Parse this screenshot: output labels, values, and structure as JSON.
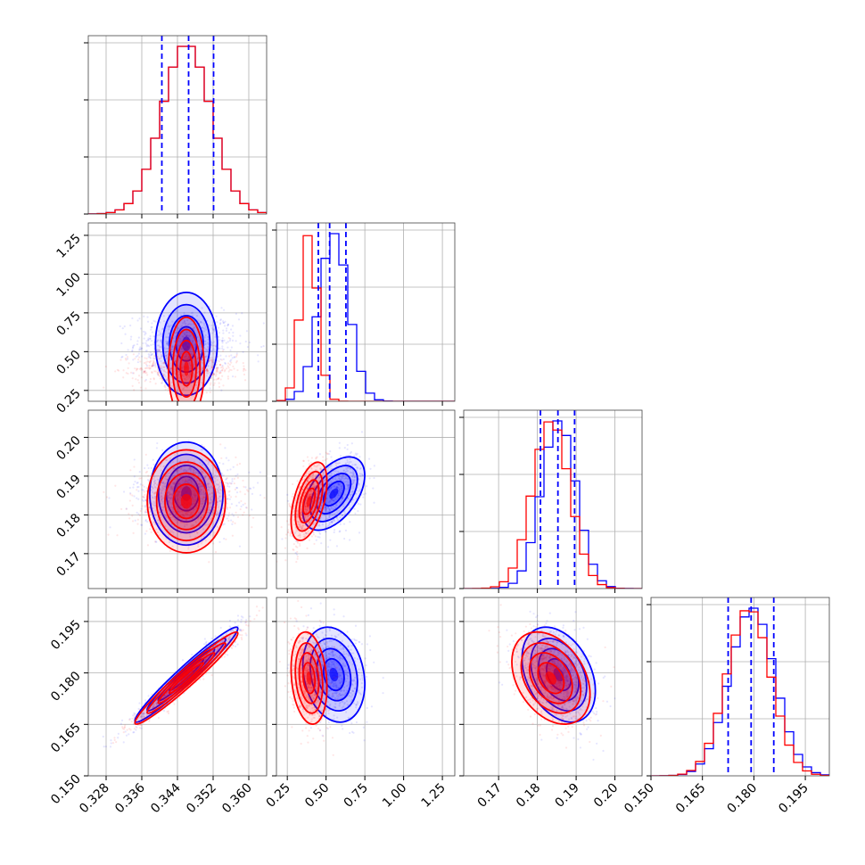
{
  "chart_data": {
    "type": "corner",
    "series": [
      {
        "name": "",
        "color": "#0000ff",
        "means": [
          0.346,
          0.55,
          0.1855,
          0.1795
        ],
        "sds": [
          0.0055,
          0.095,
          0.0045,
          0.0066
        ],
        "quantiles_1d": [
          [
            0.3405,
            0.3465,
            0.3521
          ],
          [
            0.45,
            0.523,
            0.628
          ],
          [
            0.1808,
            0.1853,
            0.1896
          ],
          [
            0.1725,
            0.1792,
            0.1858
          ]
        ]
      },
      {
        "name": "",
        "color": "#ff0000",
        "means": [
          0.346,
          0.39,
          0.1835,
          0.1785
        ],
        "sds": [
          0.0055,
          0.055,
          0.0048,
          0.0064
        ],
        "quantiles_1d": null
      }
    ],
    "correlations": [
      [
        1,
        0,
        0,
        0.97
      ],
      [
        0,
        1,
        0.5,
        -0.2
      ],
      [
        0,
        0.5,
        1,
        -0.35
      ],
      [
        0.97,
        -0.2,
        -0.35,
        1
      ]
    ],
    "quantile_line_color": "#0000ff",
    "axes": [
      {
        "range": [
          0.324,
          0.364
        ],
        "ticks": [
          0.328,
          0.336,
          0.344,
          0.352,
          0.36
        ],
        "tick_labels": [
          "0.328",
          "0.336",
          "0.344",
          "0.352",
          "0.360"
        ]
      },
      {
        "range": [
          0.18,
          1.33
        ],
        "ticks": [
          0.25,
          0.5,
          0.75,
          1.0,
          1.25
        ],
        "tick_labels": [
          "0.25",
          "0.50",
          "0.75",
          "1.00",
          "1.25"
        ],
        "row_ticks": [
          0.25,
          0.5,
          0.75,
          1.0,
          1.25
        ],
        "row_tick_labels": [
          "0.25",
          "0.50",
          "0.75",
          "1.00",
          "1.25"
        ]
      },
      {
        "range": [
          0.161,
          0.207
        ],
        "ticks": [
          0.17,
          0.18,
          0.19,
          0.2
        ],
        "tick_labels": [
          "0.17",
          "0.18",
          "0.19",
          "0.20"
        ]
      },
      {
        "range": [
          0.15,
          0.202
        ],
        "ticks": [
          0.15,
          0.165,
          0.18,
          0.195
        ],
        "tick_labels": [
          "0.150",
          "0.165",
          "0.180",
          "0.195"
        ]
      }
    ],
    "grid": true
  }
}
